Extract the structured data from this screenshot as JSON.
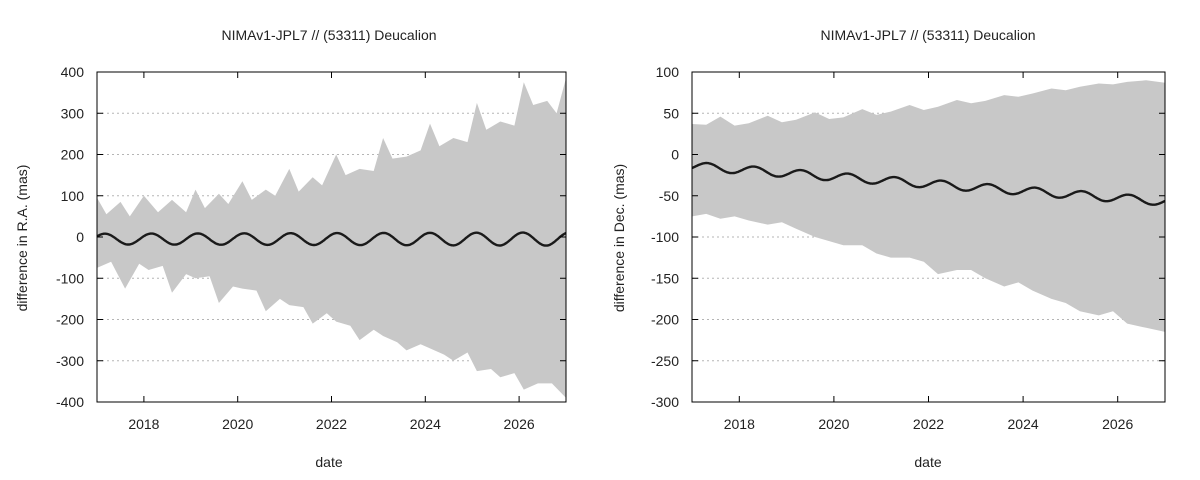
{
  "chart_data": [
    {
      "type": "area",
      "title": "NIMAv1-JPL7 // (53311) Deucalion",
      "xlabel": "date",
      "ylabel": "difference in R.A. (mas)",
      "xlim": [
        2017.0,
        2027.0
      ],
      "ylim": [
        -400,
        400
      ],
      "xticks": [
        2018,
        2020,
        2022,
        2024,
        2026
      ],
      "yticks": [
        -400,
        -300,
        -200,
        -100,
        0,
        100,
        200,
        300,
        400
      ],
      "grid": "horizontal dotted",
      "colors": {
        "band": "#c8c8c8",
        "line": "#1a1a1a"
      },
      "band_upper": {
        "x": [
          2017.0,
          2017.2,
          2017.5,
          2017.7,
          2018.0,
          2018.3,
          2018.6,
          2018.9,
          2019.1,
          2019.3,
          2019.6,
          2019.8,
          2020.1,
          2020.3,
          2020.6,
          2020.8,
          2021.1,
          2021.3,
          2021.6,
          2021.8,
          2022.1,
          2022.3,
          2022.6,
          2022.9,
          2023.1,
          2023.3,
          2023.6,
          2023.9,
          2024.1,
          2024.3,
          2024.6,
          2024.9,
          2025.1,
          2025.3,
          2025.6,
          2025.9,
          2026.1,
          2026.3,
          2026.6,
          2026.8,
          2027.0
        ],
        "y": [
          95,
          55,
          85,
          50,
          100,
          60,
          90,
          60,
          115,
          70,
          105,
          80,
          135,
          90,
          115,
          100,
          165,
          110,
          145,
          125,
          200,
          150,
          165,
          160,
          240,
          190,
          195,
          210,
          275,
          220,
          240,
          230,
          325,
          260,
          280,
          270,
          375,
          320,
          330,
          300,
          385
        ]
      },
      "band_lower": {
        "x": [
          2017.0,
          2017.3,
          2017.6,
          2017.9,
          2018.1,
          2018.4,
          2018.6,
          2018.9,
          2019.1,
          2019.4,
          2019.6,
          2019.9,
          2020.1,
          2020.4,
          2020.6,
          2020.9,
          2021.1,
          2021.4,
          2021.6,
          2021.9,
          2022.1,
          2022.4,
          2022.6,
          2022.9,
          2023.1,
          2023.4,
          2023.6,
          2023.9,
          2024.1,
          2024.4,
          2024.6,
          2024.9,
          2025.1,
          2025.4,
          2025.6,
          2025.9,
          2026.1,
          2026.4,
          2026.7,
          2027.0
        ],
        "y": [
          -75,
          -60,
          -125,
          -65,
          -80,
          -70,
          -135,
          -90,
          -100,
          -95,
          -160,
          -120,
          -125,
          -130,
          -180,
          -150,
          -165,
          -170,
          -210,
          -185,
          -205,
          -215,
          -250,
          -225,
          -240,
          -255,
          -275,
          -260,
          -270,
          -285,
          -300,
          -280,
          -325,
          -320,
          -340,
          -330,
          -370,
          -355,
          -355,
          -390
        ]
      },
      "series": [
        {
          "x_start": 2017.0,
          "x_end": 2027.0,
          "mean": -5,
          "amplitude": 13,
          "amplitude_growth": 0.3,
          "period_years": 0.99,
          "phase": 0.5
        }
      ]
    },
    {
      "type": "area",
      "title": "NIMAv1-JPL7 // (53311) Deucalion",
      "xlabel": "date",
      "ylabel": "difference in Dec. (mas)",
      "xlim": [
        2017.0,
        2027.0
      ],
      "ylim": [
        -300,
        100
      ],
      "xticks": [
        2018,
        2020,
        2022,
        2024,
        2026
      ],
      "yticks": [
        -300,
        -250,
        -200,
        -150,
        -100,
        -50,
        0,
        50,
        100
      ],
      "grid": "horizontal dotted",
      "colors": {
        "band": "#c8c8c8",
        "line": "#1a1a1a"
      },
      "band_upper": {
        "x": [
          2017.0,
          2017.3,
          2017.6,
          2017.9,
          2018.2,
          2018.6,
          2018.9,
          2019.2,
          2019.6,
          2019.9,
          2020.2,
          2020.6,
          2020.9,
          2021.2,
          2021.6,
          2021.9,
          2022.2,
          2022.6,
          2022.9,
          2023.2,
          2023.6,
          2023.9,
          2024.2,
          2024.6,
          2024.9,
          2025.2,
          2025.6,
          2025.9,
          2026.2,
          2026.6,
          2027.0
        ],
        "y": [
          37,
          36,
          46,
          35,
          38,
          47,
          39,
          42,
          51,
          43,
          45,
          55,
          48,
          52,
          60,
          54,
          58,
          66,
          62,
          65,
          72,
          70,
          74,
          80,
          78,
          82,
          86,
          85,
          88,
          90,
          87
        ]
      },
      "band_lower": {
        "x": [
          2017.0,
          2017.3,
          2017.6,
          2017.9,
          2018.2,
          2018.6,
          2018.9,
          2019.2,
          2019.6,
          2019.9,
          2020.2,
          2020.6,
          2020.9,
          2021.2,
          2021.6,
          2021.9,
          2022.2,
          2022.6,
          2022.9,
          2023.2,
          2023.6,
          2023.9,
          2024.2,
          2024.6,
          2024.9,
          2025.2,
          2025.6,
          2025.9,
          2026.2,
          2026.6,
          2027.0
        ],
        "y": [
          -75,
          -72,
          -78,
          -75,
          -80,
          -85,
          -82,
          -90,
          -100,
          -105,
          -110,
          -110,
          -120,
          -125,
          -125,
          -130,
          -145,
          -140,
          -140,
          -150,
          -160,
          -155,
          -165,
          -175,
          -180,
          -190,
          -195,
          -190,
          -205,
          -210,
          -215
        ]
      },
      "series": [
        {
          "x_start": 2017.0,
          "x_end": 2027.0,
          "mean_start": -14,
          "mean_end": -57,
          "amplitude": 5,
          "period_years": 0.99,
          "phase": -0.5
        }
      ]
    }
  ]
}
